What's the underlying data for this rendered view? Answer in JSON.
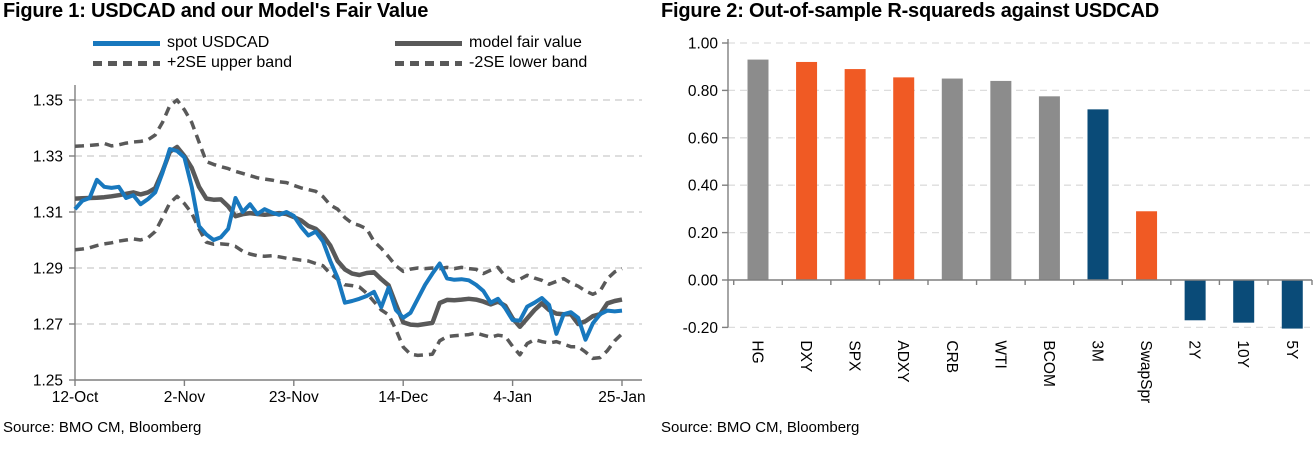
{
  "figure1": {
    "title": "Figure 1: USDCAD and our Model's Fair Value",
    "source": "Source: BMO CM, Bloomberg",
    "legend": [
      {
        "label": "spot USDCAD",
        "style": "solid",
        "color": "#1878BE"
      },
      {
        "label": "model fair value",
        "style": "solid",
        "color": "#595959"
      },
      {
        "label": "+2SE upper band",
        "style": "dashed",
        "color": "#595959"
      },
      {
        "label": "-2SE lower band",
        "style": "dashed",
        "color": "#595959"
      }
    ]
  },
  "figure2": {
    "title": "Figure 2: Out-of-sample R-squareds against USDCAD",
    "source": "Source: BMO CM, Bloomberg"
  },
  "colors": {
    "spot_blue": "#1878BE",
    "model_gray": "#595959",
    "bar_gray": "#8C8C8C",
    "bar_orange": "#F05A24",
    "bar_blue": "#0A4B78",
    "axis_gray": "#7F7F7F",
    "grid_gray": "#C9C9C9"
  },
  "chart_data": [
    {
      "type": "line",
      "title": "Figure 1: USDCAD and our Model's Fair Value",
      "x_tick_labels": [
        "12-Oct",
        "2-Nov",
        "23-Nov",
        "14-Dec",
        "4-Jan",
        "25-Jan"
      ],
      "x_tick_indices": [
        0,
        15,
        30,
        45,
        60,
        75
      ],
      "y_tick_labels": [
        "1.35",
        "1.33",
        "1.31",
        "1.29",
        "1.27",
        "1.25"
      ],
      "y_ticks": [
        1.35,
        1.33,
        1.31,
        1.29,
        1.27,
        1.25
      ],
      "grid_values": [
        1.35,
        1.33,
        1.31,
        1.29,
        1.27
      ],
      "ylim": [
        1.25,
        1.357
      ],
      "legend_position": "top",
      "grid": true,
      "series": [
        {
          "name": "+2SE upper band",
          "dash": true,
          "width": 3.5,
          "color": "#595959",
          "values": [
            1.3335,
            1.3336,
            1.3338,
            1.334,
            1.3345,
            1.3336,
            1.334,
            1.3346,
            1.335,
            1.3352,
            1.3358,
            1.3375,
            1.342,
            1.348,
            1.35,
            1.3465,
            1.342,
            1.335,
            1.328,
            1.327,
            1.3262,
            1.3255,
            1.3245,
            1.3238,
            1.323,
            1.3222,
            1.3218,
            1.3214,
            1.3208,
            1.3205,
            1.3195,
            1.3186,
            1.318,
            1.3174,
            1.3155,
            1.3125,
            1.311,
            1.308,
            1.306,
            1.3052,
            1.304,
            1.2995,
            1.297,
            1.294,
            1.2908,
            1.2888,
            1.2896,
            1.29,
            1.2898,
            1.29,
            1.2898,
            1.2902,
            1.2898,
            1.2902,
            1.2898,
            1.2895,
            1.288,
            1.2892,
            1.2902,
            1.287,
            1.2853,
            1.286,
            1.2874,
            1.2864,
            1.2856,
            1.2842,
            1.2852,
            1.2862,
            1.2846,
            1.2835,
            1.2818,
            1.2806,
            1.2818,
            1.2862,
            1.2886,
            1.2898
          ]
        },
        {
          "name": "-2SE lower band",
          "dash": true,
          "width": 3.5,
          "color": "#595959",
          "values": [
            1.2965,
            1.2968,
            1.2972,
            1.298,
            1.2986,
            1.299,
            1.2996,
            1.3,
            1.3004,
            1.3,
            1.3008,
            1.303,
            1.308,
            1.3132,
            1.3156,
            1.313,
            1.3096,
            1.304,
            1.2992,
            1.2985,
            1.2986,
            1.2984,
            1.2977,
            1.296,
            1.295,
            1.2944,
            1.2942,
            1.2944,
            1.294,
            1.2935,
            1.2932,
            1.2928,
            1.2925,
            1.2916,
            1.2908,
            1.288,
            1.286,
            1.284,
            1.2837,
            1.2832,
            1.281,
            1.278,
            1.275,
            1.2733,
            1.268,
            1.2618,
            1.2592,
            1.2588,
            1.259,
            1.2592,
            1.264,
            1.2655,
            1.2658,
            1.266,
            1.2662,
            1.2668,
            1.266,
            1.2653,
            1.266,
            1.2656,
            1.262,
            1.259,
            1.263,
            1.2644,
            1.2637,
            1.2632,
            1.2637,
            1.2628,
            1.2619,
            1.2619,
            1.26,
            1.2577,
            1.258,
            1.2605,
            1.264,
            1.2665
          ]
        },
        {
          "name": "model fair value",
          "dash": false,
          "width": 4.5,
          "color": "#595959",
          "values": [
            1.3148,
            1.3149,
            1.315,
            1.3151,
            1.3153,
            1.3156,
            1.316,
            1.3165,
            1.317,
            1.3163,
            1.317,
            1.3185,
            1.3245,
            1.3315,
            1.3332,
            1.33,
            1.3258,
            1.319,
            1.3148,
            1.3144,
            1.3145,
            1.312,
            1.3085,
            1.3092,
            1.3096,
            1.3093,
            1.309,
            1.3093,
            1.3096,
            1.3093,
            1.3082,
            1.307,
            1.305,
            1.304,
            1.3016,
            1.298,
            1.2925,
            1.2895,
            1.288,
            1.2875,
            1.2882,
            1.2885,
            1.286,
            1.2838,
            1.277,
            1.2706,
            1.2698,
            1.2696,
            1.27,
            1.2704,
            1.2775,
            1.2786,
            1.2785,
            1.2787,
            1.279,
            1.2787,
            1.278,
            1.277,
            1.278,
            1.2765,
            1.272,
            1.269,
            1.272,
            1.275,
            1.2774,
            1.275,
            1.2737,
            1.2735,
            1.2735,
            1.27,
            1.271,
            1.2728,
            1.2735,
            1.2774,
            1.2782,
            1.2787
          ]
        },
        {
          "name": "spot USDCAD",
          "dash": false,
          "width": 4,
          "color": "#1878BE",
          "values": [
            1.311,
            1.314,
            1.315,
            1.3215,
            1.319,
            1.3186,
            1.319,
            1.315,
            1.316,
            1.3128,
            1.3146,
            1.317,
            1.324,
            1.3325,
            1.3318,
            1.3295,
            1.319,
            1.305,
            1.302,
            1.3,
            1.301,
            1.304,
            1.315,
            1.31,
            1.3128,
            1.3093,
            1.311,
            1.3098,
            1.309,
            1.31,
            1.3086,
            1.3047,
            1.3016,
            1.303,
            1.2995,
            1.2925,
            1.2865,
            1.2776,
            1.2782,
            1.279,
            1.28,
            1.2815,
            1.276,
            1.283,
            1.275,
            1.2722,
            1.274,
            1.279,
            1.284,
            1.288,
            1.2916,
            1.2863,
            1.2858,
            1.286,
            1.2856,
            1.284,
            1.2818,
            1.2776,
            1.279,
            1.2756,
            1.2714,
            1.2712,
            1.2762,
            1.2776,
            1.2793,
            1.2768,
            1.2665,
            1.2735,
            1.2742,
            1.2722,
            1.2644,
            1.2702,
            1.2735,
            1.2748,
            1.2745,
            1.2748
          ]
        }
      ]
    },
    {
      "type": "bar",
      "title": "Figure 2: Out-of-sample R-squareds against USDCAD",
      "categories": [
        "HG",
        "DXY",
        "SPX",
        "ADXY",
        "CRB",
        "WTI",
        "BCOM",
        "3M",
        "SwapSpr",
        "2Y",
        "10Y",
        "5Y"
      ],
      "values": [
        0.93,
        0.92,
        0.89,
        0.855,
        0.85,
        0.84,
        0.775,
        0.72,
        0.29,
        -0.17,
        -0.18,
        -0.205
      ],
      "bar_colors": [
        "gray",
        "orange",
        "orange",
        "orange",
        "gray",
        "gray",
        "gray",
        "blue",
        "orange",
        "blue",
        "blue",
        "blue"
      ],
      "color_map": {
        "gray": "#8C8C8C",
        "orange": "#F05A24",
        "blue": "#0A4B78"
      },
      "y_tick_labels": [
        "1.00",
        "0.80",
        "0.60",
        "0.40",
        "0.20",
        "0.00",
        "-0.20"
      ],
      "y_ticks": [
        1.0,
        0.8,
        0.6,
        0.4,
        0.2,
        0.0,
        -0.2
      ],
      "grid_values": [
        1.0,
        0.8,
        0.6,
        0.4,
        0.2,
        -0.2
      ],
      "ylim": [
        -0.25,
        1.0
      ],
      "grid": true,
      "xlabel": "",
      "ylabel": ""
    }
  ]
}
